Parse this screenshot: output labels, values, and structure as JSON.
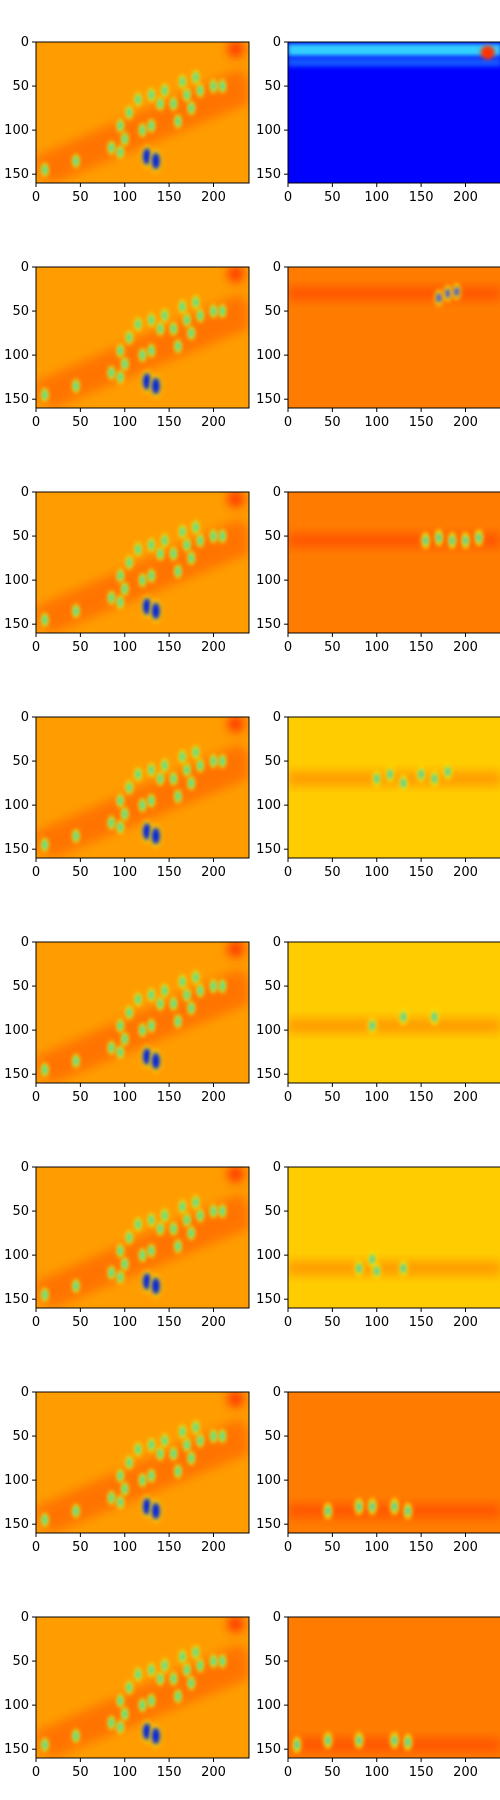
{
  "figure": {
    "rows": 8,
    "cols": 2,
    "colormap": "jet",
    "x_ticks": [
      "0",
      "50",
      "100",
      "150",
      "200"
    ],
    "y_ticks": [
      "0",
      "50",
      "100",
      "150"
    ],
    "colors": {
      "background_right_top": "#0000ff",
      "background_orange": "#ff7c00",
      "background_yellow": "#ffcc00",
      "left_background": "#ff9d00",
      "hot_spot": "#ff3300",
      "cold_spot": "#0020e0"
    },
    "panels_right_background": [
      "blue",
      "orange",
      "orange",
      "yellow",
      "yellow",
      "yellow",
      "orange",
      "orange"
    ]
  }
}
